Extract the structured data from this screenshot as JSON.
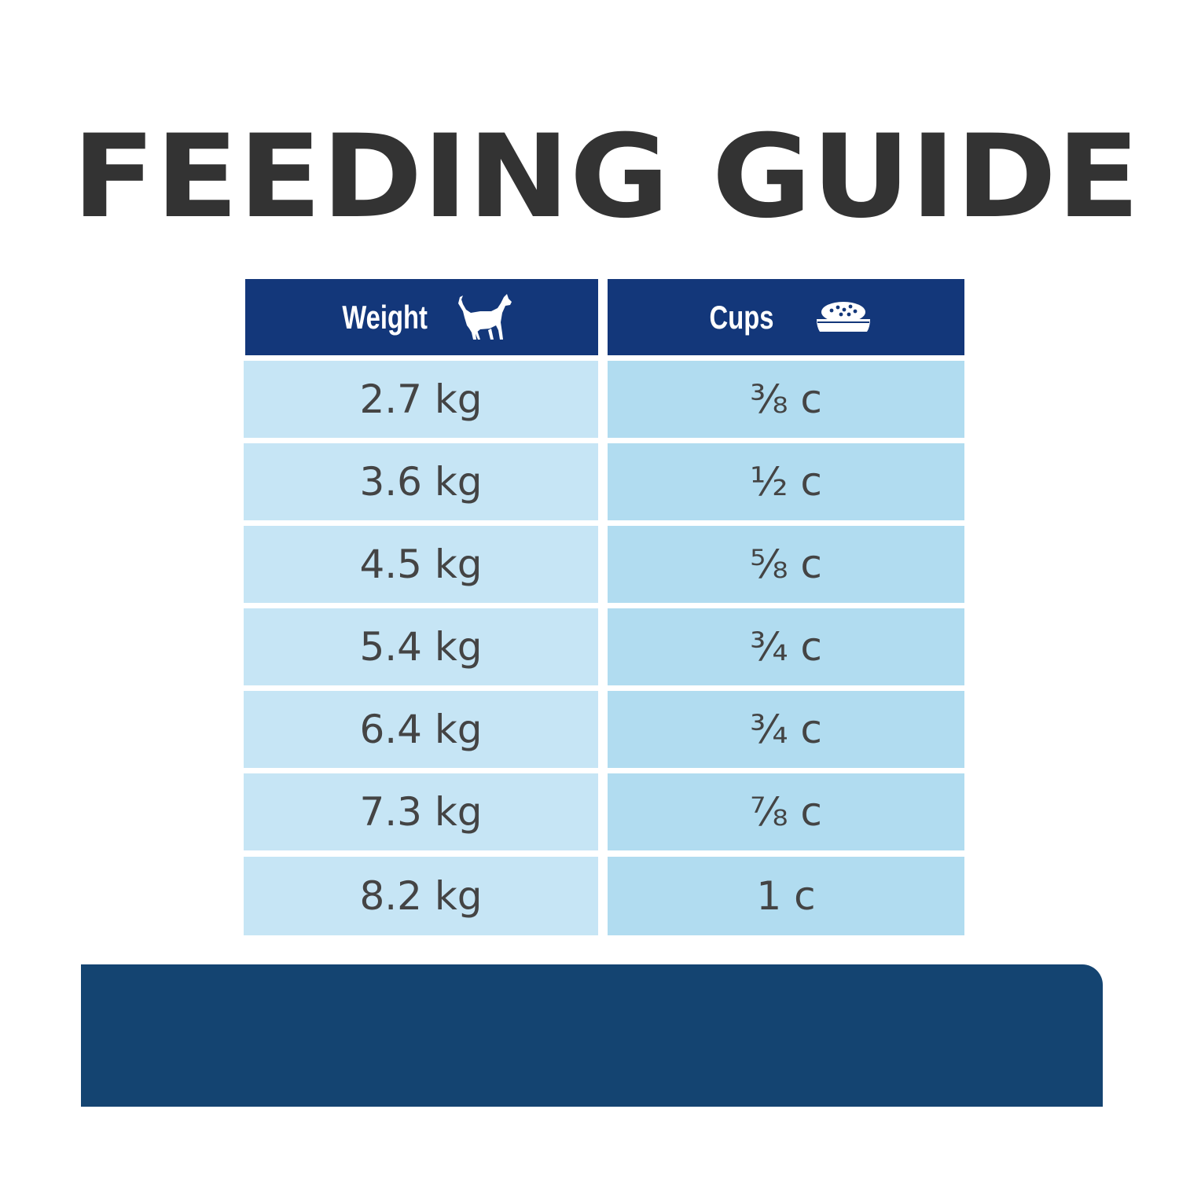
{
  "title": "FEEDING GUIDE",
  "colors": {
    "header_bg": "#13377a",
    "weight_cell_bg": "#c6e5f5",
    "cups_cell_bg": "#b1dcf0",
    "bottom_band": "#144471",
    "text_dark": "#333333"
  },
  "table": {
    "header": {
      "weight_label": "Weight",
      "weight_icon": "cat-icon",
      "cups_label": "Cups",
      "cups_icon": "food-bowl-icon"
    },
    "rows": [
      {
        "weight": "2.7 kg",
        "cups": "⅜ c"
      },
      {
        "weight": "3.6 kg",
        "cups": "½ c"
      },
      {
        "weight": "4.5 kg",
        "cups": "⅝ c"
      },
      {
        "weight": "5.4 kg",
        "cups": "¾ c"
      },
      {
        "weight": "6.4 kg",
        "cups": "¾ c"
      },
      {
        "weight": "7.3 kg",
        "cups": "⅞ c"
      },
      {
        "weight": "8.2 kg",
        "cups": "1 c"
      }
    ]
  }
}
